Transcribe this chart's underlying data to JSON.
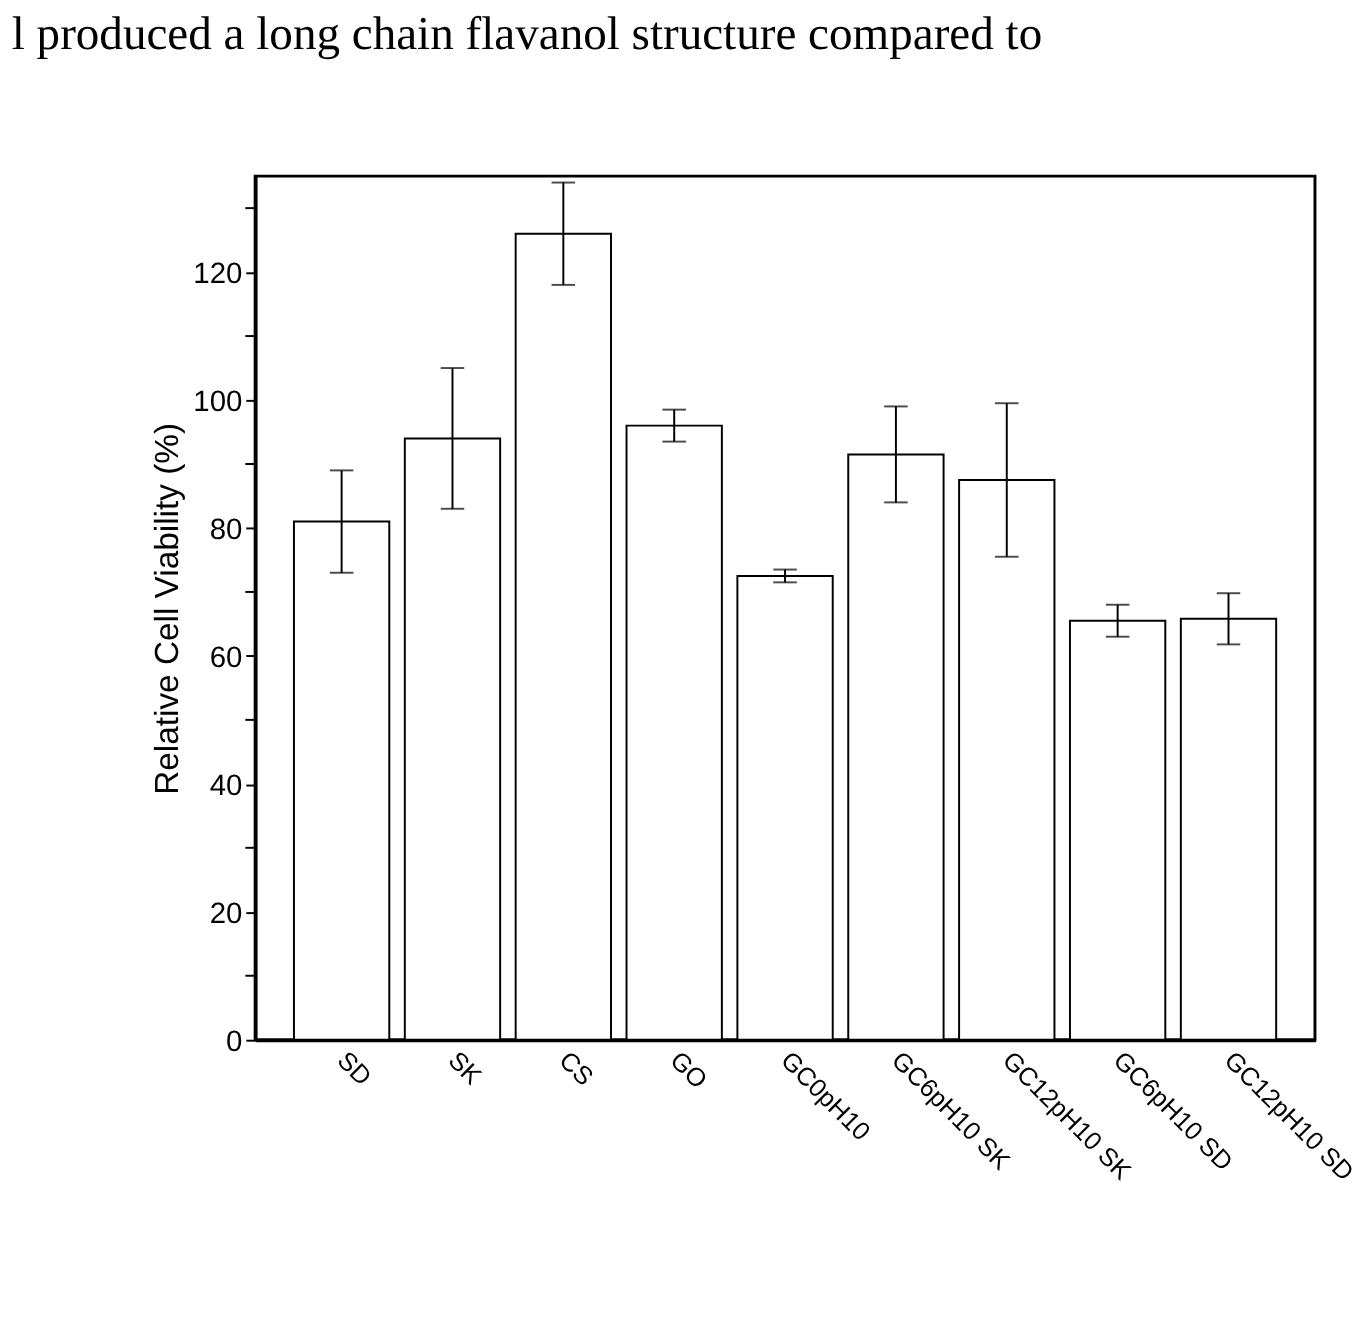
{
  "chart_data": {
    "type": "bar",
    "ylabel": "Relative Cell Viability (%)",
    "annotations": [
      "l produced a long chain flavanol structure compared to"
    ],
    "categories": [
      "SD",
      "SK",
      "CS",
      "GO",
      "GC0pH10",
      "GC6pH10 SK",
      "GC12pH10 SK",
      "GC6pH10 SD",
      "GC12pH10 SD"
    ],
    "values": [
      81,
      94,
      126,
      96,
      72.5,
      91.5,
      87.5,
      65.5,
      65.8
    ],
    "errors": [
      8,
      11,
      8,
      2.5,
      1,
      7.5,
      12,
      2.5,
      4
    ],
    "color": "#ffffff",
    "ylim": [
      0,
      135
    ],
    "yticks": [
      0,
      {
        "value": 10,
        "label": null
      },
      20,
      {
        "value": 30,
        "label": null
      },
      40,
      {
        "value": 50,
        "label": null
      },
      60,
      {
        "value": 70,
        "label": null
      },
      80,
      {
        "value": 90,
        "label": null
      },
      100,
      {
        "value": 110,
        "label": null
      },
      120,
      {
        "value": 130,
        "label": null
      }
    ],
    "grid": false
  }
}
